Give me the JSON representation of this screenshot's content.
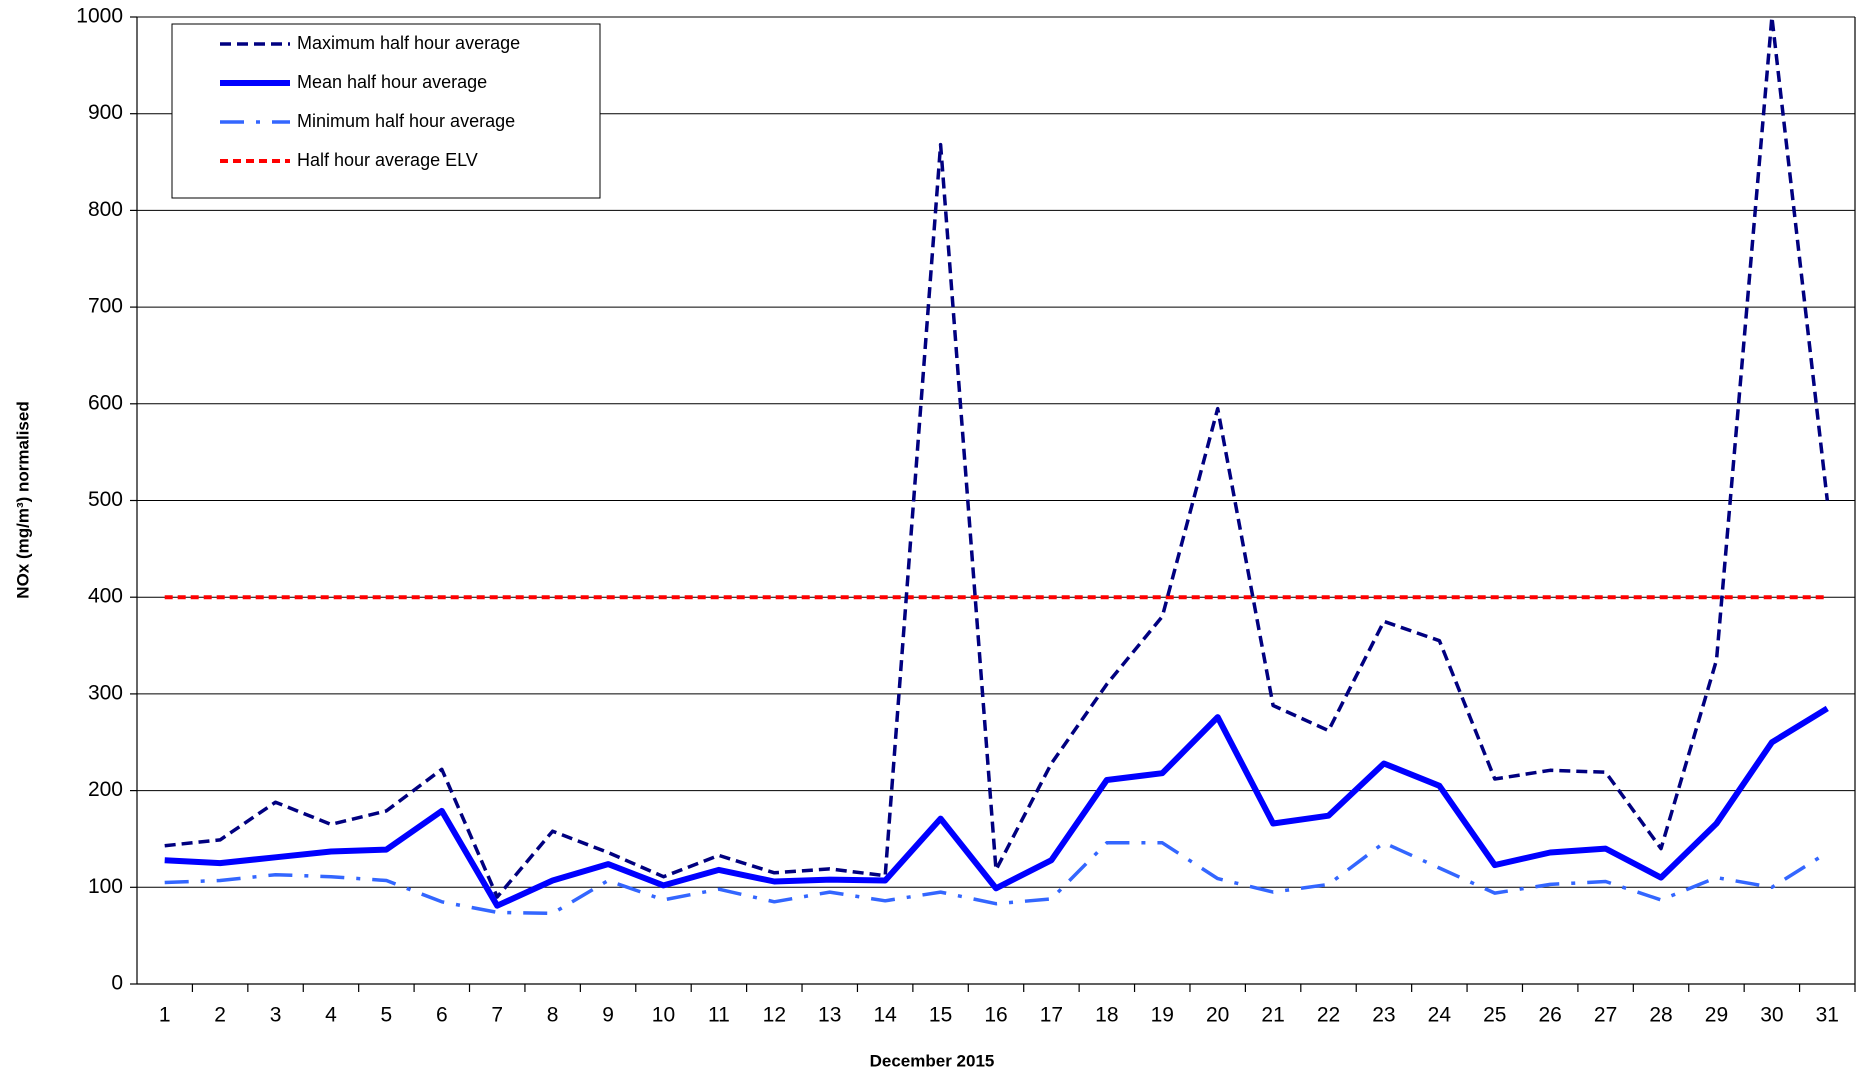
{
  "chart_data": {
    "type": "line",
    "x_label": "December 2015",
    "y_label": "NOx (mg/m³) normalised",
    "categories": [
      "1",
      "2",
      "3",
      "4",
      "5",
      "6",
      "7",
      "8",
      "9",
      "10",
      "11",
      "12",
      "13",
      "14",
      "15",
      "16",
      "17",
      "18",
      "19",
      "20",
      "21",
      "22",
      "23",
      "24",
      "25",
      "26",
      "27",
      "28",
      "29",
      "30",
      "31"
    ],
    "series": [
      {
        "name": "Maximum half hour average",
        "color": "#000080",
        "line_style": "dashed",
        "values": [
          143,
          149,
          188,
          165,
          179,
          222,
          90,
          158,
          136,
          111,
          133,
          115,
          119,
          112,
          868,
          118,
          228,
          310,
          380,
          595,
          288,
          262,
          375,
          355,
          212,
          221,
          219,
          140,
          335,
          1000,
          500
        ]
      },
      {
        "name": "Mean half hour average",
        "color": "#0000ff",
        "line_style": "solid",
        "values": [
          128,
          125,
          131,
          137,
          139,
          179,
          81,
          107,
          124,
          102,
          118,
          106,
          108,
          107,
          171,
          99,
          128,
          211,
          218,
          276,
          166,
          174,
          228,
          205,
          123,
          136,
          140,
          110,
          166,
          250,
          285
        ]
      },
      {
        "name": "Minimum half hour average",
        "color": "#3366ff",
        "line_style": "dashdot",
        "values": [
          105,
          107,
          113,
          111,
          107,
          85,
          74,
          73,
          107,
          87,
          98,
          85,
          95,
          86,
          95,
          83,
          88,
          146,
          146,
          109,
          95,
          103,
          146,
          120,
          94,
          103,
          106,
          87,
          110,
          100,
          136
        ]
      },
      {
        "name": "Half hour average ELV",
        "color": "#ff0000",
        "line_style": "dotted",
        "values": [
          400,
          400,
          400,
          400,
          400,
          400,
          400,
          400,
          400,
          400,
          400,
          400,
          400,
          400,
          400,
          400,
          400,
          400,
          400,
          400,
          400,
          400,
          400,
          400,
          400,
          400,
          400,
          400,
          400,
          400,
          400
        ]
      }
    ],
    "ylim": [
      0,
      1000
    ],
    "yticks": [
      0,
      100,
      200,
      300,
      400,
      500,
      600,
      700,
      800,
      900,
      1000
    ],
    "grid": true,
    "legend": "upper-left"
  }
}
